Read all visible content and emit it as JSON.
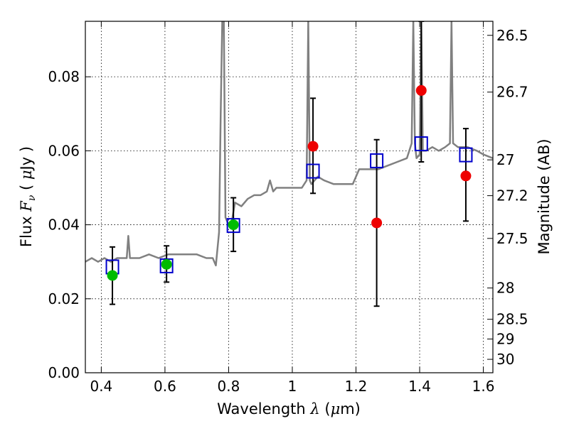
{
  "chart_data": {
    "type": "scatter",
    "title": "",
    "xlabel": "Wavelength  λ (μm)",
    "ylabel": "Flux  F_ν  ( μJy )",
    "ylabel_parts": {
      "lead": "Flux  ",
      "var": "F",
      "sub": "ν",
      "mid": "  ( ",
      "mu": "μ",
      "unit": "Jy )"
    },
    "xlabel_parts": {
      "lead": "Wavelength  ",
      "var": "λ",
      "mid": " (",
      "mu": "μ",
      "unit": "m)"
    },
    "y2label": "Magnitude (AB)",
    "xlim": [
      0.35,
      1.63
    ],
    "ylim": [
      0.0,
      0.095
    ],
    "grid": true,
    "x_ticks": [
      {
        "value": 0.4,
        "label": "0.4"
      },
      {
        "value": 0.6,
        "label": "0.6"
      },
      {
        "value": 0.8,
        "label": "0.8"
      },
      {
        "value": 1.0,
        "label": "1"
      },
      {
        "value": 1.2,
        "label": "1.2"
      },
      {
        "value": 1.4,
        "label": "1.4"
      },
      {
        "value": 1.6,
        "label": "1.6"
      }
    ],
    "y_ticks": [
      {
        "value": 0.0,
        "label": "0.00"
      },
      {
        "value": 0.02,
        "label": "0.02"
      },
      {
        "value": 0.04,
        "label": "0.04"
      },
      {
        "value": 0.06,
        "label": "0.06"
      },
      {
        "value": 0.08,
        "label": "0.08"
      }
    ],
    "mag_ticks": [
      {
        "value": 26.5,
        "label": "26.5"
      },
      {
        "value": 26.7,
        "label": "26.7"
      },
      {
        "value": 27.0,
        "label": "27"
      },
      {
        "value": 27.2,
        "label": "27.2"
      },
      {
        "value": 27.5,
        "label": "27.5"
      },
      {
        "value": 28.0,
        "label": "28"
      },
      {
        "value": 28.5,
        "label": "28.5"
      },
      {
        "value": 29.0,
        "label": "29"
      },
      {
        "value": 30.0,
        "label": "30"
      }
    ],
    "colors": {
      "model": "#808080",
      "model_points": "#0000cc",
      "detections": "#00bb00",
      "other_points": "#ee0000",
      "errorbars": "#000000"
    },
    "model_spectrum": {
      "name": "model",
      "x": [
        0.35,
        0.37,
        0.39,
        0.41,
        0.43,
        0.45,
        0.47,
        0.48,
        0.485,
        0.49,
        0.5,
        0.52,
        0.55,
        0.58,
        0.61,
        0.64,
        0.67,
        0.7,
        0.73,
        0.75,
        0.76,
        0.77,
        0.775,
        0.78,
        0.785,
        0.79,
        0.8,
        0.81,
        0.82,
        0.84,
        0.86,
        0.88,
        0.9,
        0.92,
        0.93,
        0.94,
        0.95,
        0.97,
        1.0,
        1.03,
        1.045,
        1.05,
        1.055,
        1.06,
        1.08,
        1.1,
        1.13,
        1.16,
        1.19,
        1.21,
        1.23,
        1.25,
        1.27,
        1.3,
        1.33,
        1.36,
        1.375,
        1.38,
        1.385,
        1.39,
        1.4,
        1.405,
        1.41,
        1.42,
        1.44,
        1.46,
        1.48,
        1.495,
        1.5,
        1.505,
        1.52,
        1.55,
        1.58,
        1.6,
        1.63
      ],
      "y": [
        0.03,
        0.031,
        0.03,
        0.031,
        0.03,
        0.031,
        0.031,
        0.031,
        0.037,
        0.031,
        0.031,
        0.031,
        0.032,
        0.031,
        0.032,
        0.032,
        0.032,
        0.032,
        0.031,
        0.031,
        0.029,
        0.038,
        0.07,
        0.095,
        0.095,
        0.042,
        0.04,
        0.041,
        0.046,
        0.045,
        0.047,
        0.048,
        0.048,
        0.049,
        0.052,
        0.049,
        0.05,
        0.05,
        0.05,
        0.05,
        0.052,
        0.095,
        0.052,
        0.051,
        0.053,
        0.052,
        0.051,
        0.051,
        0.051,
        0.055,
        0.055,
        0.055,
        0.055,
        0.056,
        0.057,
        0.058,
        0.062,
        0.095,
        0.062,
        0.058,
        0.059,
        0.095,
        0.06,
        0.06,
        0.061,
        0.06,
        0.061,
        0.062,
        0.095,
        0.062,
        0.061,
        0.061,
        0.06,
        0.059,
        0.058
      ]
    },
    "series": [
      {
        "marker": "open-square",
        "x": [
          0.435,
          0.605,
          0.815,
          1.065,
          1.265,
          1.405,
          1.545
        ],
        "y": [
          0.0286,
          0.0289,
          0.0398,
          0.0545,
          0.0573,
          0.0619,
          0.0589
        ]
      },
      {
        "marker": "filled-circle-green",
        "x": [
          0.435,
          0.605,
          0.815
        ],
        "y": [
          0.0263,
          0.0293,
          0.04
        ],
        "yerr_low": [
          0.0185,
          0.0245,
          0.0328
        ],
        "yerr_high": [
          0.034,
          0.0343,
          0.0473
        ]
      },
      {
        "marker": "filled-circle-red",
        "x": [
          1.065,
          1.265,
          1.405,
          1.545
        ],
        "y": [
          0.0612,
          0.0405,
          0.0763,
          0.0532
        ],
        "yerr_low": [
          0.0485,
          0.018,
          0.057,
          0.041
        ],
        "yerr_high": [
          0.0742,
          0.063,
          0.095,
          0.066
        ]
      }
    ]
  }
}
